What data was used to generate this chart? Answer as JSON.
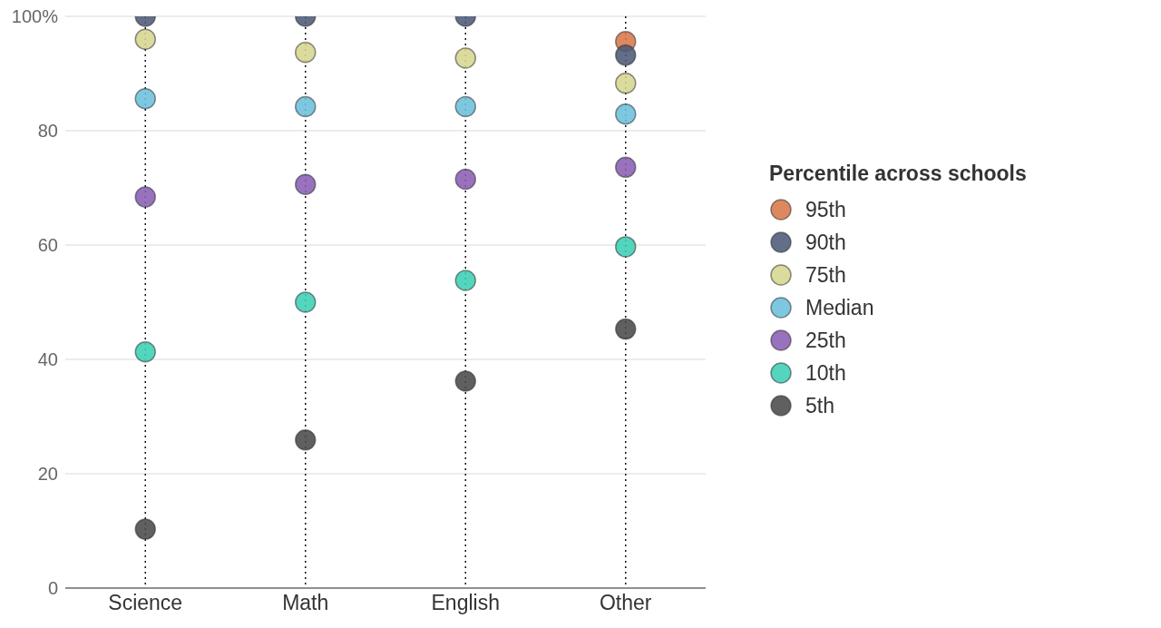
{
  "chart_data": {
    "type": "scatter",
    "categories": [
      "Science",
      "Math",
      "English",
      "Other"
    ],
    "series": [
      {
        "name": "95th",
        "color": "#d9774a",
        "values": [
          null,
          null,
          null,
          95.6
        ]
      },
      {
        "name": "90th",
        "color": "#4d5a78",
        "values": [
          100,
          100,
          100,
          93.2
        ]
      },
      {
        "name": "75th",
        "color": "#d6d68f",
        "values": [
          96,
          93.7,
          92.7,
          88.3
        ]
      },
      {
        "name": "Median",
        "color": "#6bc0dc",
        "values": [
          85.6,
          84.2,
          84.2,
          82.9
        ]
      },
      {
        "name": "25th",
        "color": "#8b5fb5",
        "values": [
          68.4,
          70.6,
          71.5,
          73.6
        ]
      },
      {
        "name": "10th",
        "color": "#3ccfb5",
        "values": [
          41.3,
          50,
          53.8,
          59.7
        ]
      },
      {
        "name": "5th",
        "color": "#4a4a4a",
        "values": [
          10.3,
          25.9,
          36.2,
          45.3
        ]
      }
    ],
    "legend_title": "Percentile across schools",
    "legend": "right",
    "marker": "circle",
    "grid": true,
    "ylim": [
      0,
      100
    ],
    "yticks": [
      0,
      20,
      40,
      60,
      80,
      {
        "value": 100,
        "label": "100%"
      }
    ]
  }
}
